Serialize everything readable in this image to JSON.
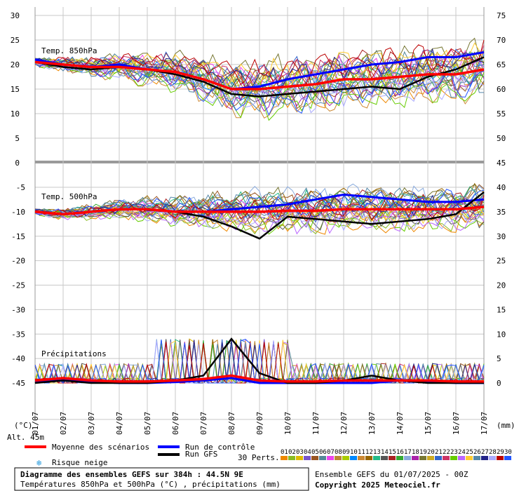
{
  "chart_data": {
    "type": "line",
    "title": "Diagramme des ensembles GEFS sur 384h : 44.5N 9E",
    "subtitle": "Températures 850hPa et 500hPa (°C) , précipitations (mm)",
    "run_info": "Ensemble GEFS du 01/07/2025 - 00Z",
    "copyright": "Copyright 2025 Meteociel.fr",
    "altitude": "Alt. 45m",
    "left_axis_unit": "(°C)",
    "right_axis_unit": "(mm)",
    "left_ticks_top": [
      "30",
      "25",
      "20",
      "15",
      "10",
      "5",
      "0"
    ],
    "right_ticks_top": [
      "75",
      "70",
      "65",
      "60",
      "55",
      "50",
      "45"
    ],
    "left_ticks_bottom": [
      "-5",
      "-10",
      "-15",
      "-20",
      "-25",
      "-30",
      "-35",
      "-40",
      "-45"
    ],
    "right_ticks_bottom": [
      "40",
      "35",
      "30",
      "25",
      "20",
      "15",
      "10",
      "5",
      "0"
    ],
    "panel_labels": {
      "t850": "Temp. 850hPa",
      "t500": "Temp. 500hPa",
      "precip": "Précipitations"
    },
    "x_labels": [
      "01/07",
      "02/07",
      "03/07",
      "04/07",
      "05/07",
      "06/07",
      "07/07",
      "08/07",
      "09/07",
      "10/07",
      "11/07",
      "12/07",
      "13/07",
      "14/07",
      "15/07",
      "16/07",
      "17/07"
    ],
    "x_hours": [
      0,
      24,
      48,
      72,
      96,
      120,
      144,
      168,
      192,
      216,
      240,
      264,
      288,
      312,
      336,
      360,
      384
    ],
    "t850_range": [
      0,
      30
    ],
    "t500_range": [
      -45,
      -5
    ],
    "precip_range_mm": [
      0,
      40
    ],
    "series": [
      {
        "name": "Moyenne des scénarios",
        "color": "#ff0000",
        "t850": [
          20.5,
          20,
          19.5,
          19.5,
          19,
          18.5,
          17,
          15,
          15,
          15.5,
          16,
          17,
          17,
          17.5,
          18,
          18,
          19
        ],
        "t500": [
          -10,
          -10.5,
          -10,
          -9.5,
          -9.5,
          -10,
          -10,
          -10,
          -10,
          -9.8,
          -9.8,
          -9.5,
          -9.5,
          -9.5,
          -9.5,
          -9.5,
          -9
        ],
        "precip": [
          0.5,
          1,
          0.5,
          0.3,
          0.3,
          0.5,
          0.8,
          1.5,
          0.5,
          0.3,
          0.3,
          0.5,
          0.5,
          0.5,
          0.5,
          0.3,
          0.3
        ]
      },
      {
        "name": "Run de contrôle",
        "color": "#0000ff",
        "t850": [
          21,
          20,
          19.5,
          20,
          19,
          18.5,
          17,
          15,
          15.5,
          17,
          18,
          19,
          20,
          20.5,
          21.5,
          21.5,
          22.5
        ],
        "t500": [
          -10,
          -10.5,
          -10,
          -9.5,
          -9.5,
          -10,
          -10,
          -9.5,
          -9,
          -8.5,
          -7.5,
          -6.5,
          -7,
          -7.5,
          -8,
          -8,
          -7.5
        ],
        "precip": [
          0.3,
          0.5,
          0.3,
          0,
          0,
          0.2,
          0.5,
          1,
          0,
          0,
          0,
          0,
          0,
          0.5,
          0.3,
          0,
          0
        ]
      },
      {
        "name": "Run GFS",
        "color": "#000000",
        "t850": [
          20.5,
          19.5,
          19,
          19.5,
          19,
          18,
          16.5,
          14,
          13.5,
          14,
          14.5,
          15,
          15.5,
          15,
          17.5,
          19,
          21.5
        ],
        "t500": [
          -10,
          -10.5,
          -10,
          -9.5,
          -9.5,
          -10,
          -11,
          -13,
          -15.5,
          -11,
          -11.5,
          -12,
          -12.5,
          -12,
          -11.5,
          -10.5,
          -6
        ],
        "precip": [
          0,
          0.5,
          0,
          0,
          0,
          0.5,
          1.5,
          9,
          2,
          0,
          0,
          0.5,
          1.5,
          0.5,
          0,
          0,
          0
        ]
      }
    ],
    "perturbations_label": "30 Perts.",
    "perturbation_numbers": [
      "01",
      "02",
      "03",
      "04",
      "05",
      "06",
      "07",
      "08",
      "09",
      "10",
      "11",
      "12",
      "13",
      "14",
      "15",
      "16",
      "17",
      "18",
      "19",
      "20",
      "21",
      "22",
      "23",
      "24",
      "25",
      "26",
      "27",
      "28",
      "29",
      "30"
    ],
    "perturbation_colors": [
      "#ee8800",
      "#88bb22",
      "#ddbb00",
      "#7755cc",
      "#995522",
      "#558899",
      "#ee44ee",
      "#bb8833",
      "#aacc00",
      "#0088ff",
      "#cc8833",
      "#996600",
      "#22bb88",
      "#555555",
      "#aa2222",
      "#33aa33",
      "#88aadd",
      "#aa22aa",
      "#777733",
      "#ccaa22",
      "#3366cc",
      "#cc3366",
      "#66cc00",
      "#bb66ff",
      "#ffcc33",
      "#5588aa",
      "#222288",
      "#aaaaff",
      "#bb0000",
      "#2255ff"
    ],
    "legend_risque_neige": "Risque neige"
  }
}
